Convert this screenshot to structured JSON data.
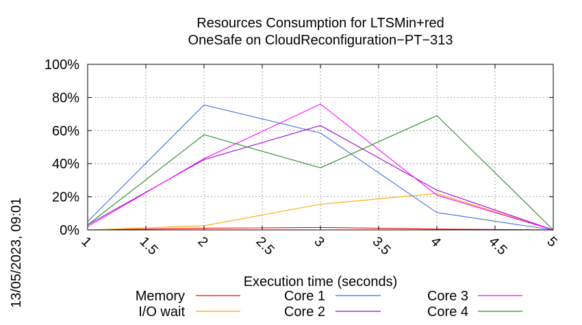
{
  "chart_data": {
    "type": "line",
    "title_line1": "Resources Consumption for LTSMin+red",
    "title_line2": "OneSafe on CloudReconfiguration−PT−313",
    "xlabel": "Execution time (seconds)",
    "ylabel": "",
    "timestamp": "13/05/2023, 09:01",
    "xlim": [
      1,
      5
    ],
    "ylim": [
      0,
      100
    ],
    "x_ticks": [
      1,
      1.5,
      2,
      2.5,
      3,
      3.5,
      4,
      4.5,
      5
    ],
    "x_tick_labels": [
      "1",
      "1.5",
      "2",
      "2.5",
      "3",
      "3.5",
      "4",
      "4.5",
      "5"
    ],
    "y_ticks": [
      0,
      20,
      40,
      60,
      80,
      100
    ],
    "y_tick_labels": [
      "0%",
      "20%",
      "40%",
      "60%",
      "80%",
      "100%"
    ],
    "grid": true,
    "legend_placement": "bottom",
    "x": [
      1,
      2,
      3,
      4,
      5
    ],
    "series": [
      {
        "name": "Memory",
        "color": "#ff0000",
        "values": [
          0,
          1,
          1.5,
          0.5,
          0
        ]
      },
      {
        "name": "I/O wait",
        "color": "#ffa500",
        "values": [
          0,
          2.5,
          15.5,
          22,
          0
        ]
      },
      {
        "name": "Core 1",
        "color": "#4169e1",
        "values": [
          5,
          75.5,
          58.5,
          10.5,
          0
        ]
      },
      {
        "name": "Core 2",
        "color": "#9400d3",
        "values": [
          3,
          42.5,
          63,
          24,
          0
        ]
      },
      {
        "name": "Core 3",
        "color": "#ff00ff",
        "values": [
          2,
          43,
          76,
          21,
          0
        ]
      },
      {
        "name": "Core 4",
        "color": "#228b22",
        "values": [
          3,
          57.5,
          37.5,
          69,
          0
        ]
      }
    ]
  }
}
